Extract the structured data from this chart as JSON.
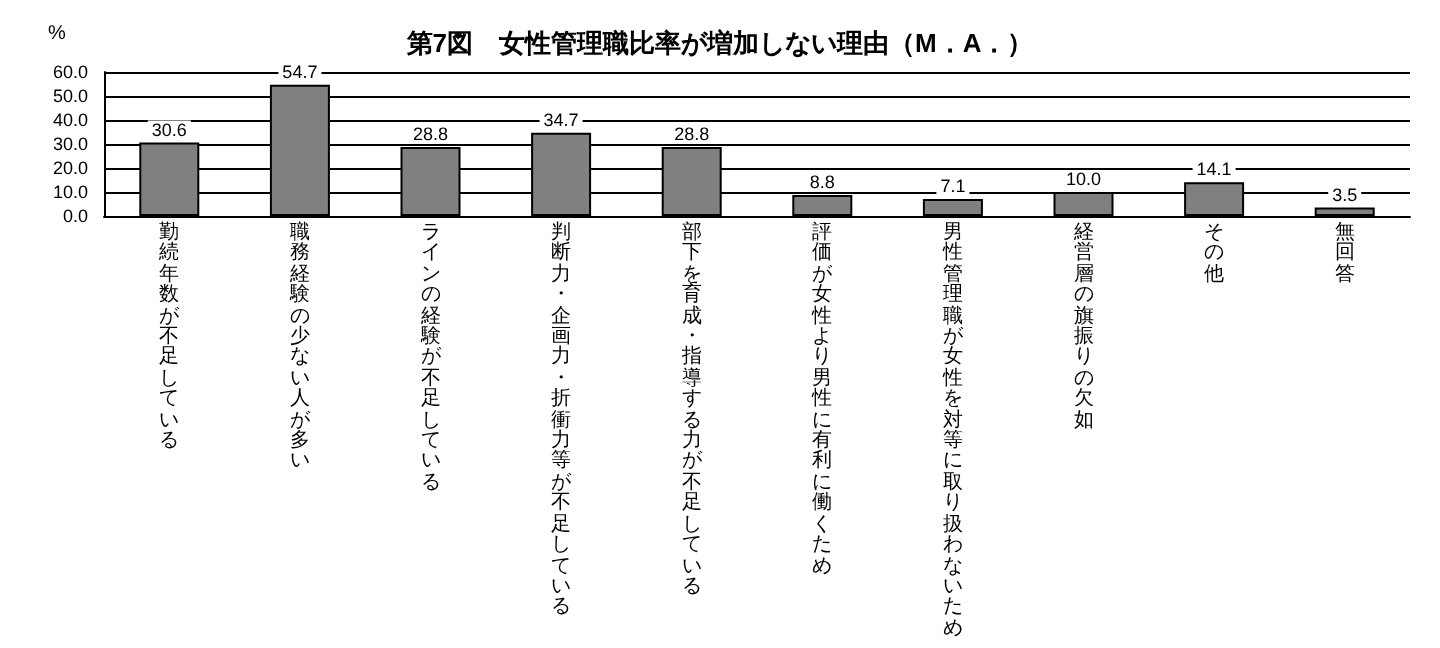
{
  "chart_data": {
    "type": "bar",
    "title": "第7図　女性管理職比率が増加しない理由（M．A．）",
    "ylabel": "%",
    "categories": [
      "勤続年数が不足している",
      "職務経験の少ない人が多い",
      "ラインの経験が不足している",
      "判断力・企画力・折衝力等が不足している",
      "部下を育成・指導する力が不足している",
      "評価が女性より男性に有利に働くため",
      "男性管理職が女性を対等に取り扱わないため",
      "経営層の旗振りの欠如",
      "その他",
      "無回答"
    ],
    "values": [
      30.6,
      54.7,
      28.8,
      34.7,
      28.8,
      8.8,
      7.1,
      10.0,
      14.1,
      3.5
    ],
    "value_labels": [
      "30.6",
      "54.7",
      "28.8",
      "34.7",
      "28.8",
      "8.8",
      "7.1",
      "10.0",
      "14.1",
      "3.5"
    ],
    "color": "#808080",
    "ylim": [
      0,
      60
    ],
    "yticks": [
      {
        "value": 0,
        "label": "0.0"
      },
      {
        "value": 10,
        "label": "10.0"
      },
      {
        "value": 20,
        "label": "20.0"
      },
      {
        "value": 30,
        "label": "30.0"
      },
      {
        "value": 40,
        "label": "40.0"
      },
      {
        "value": 50,
        "label": "50.0"
      },
      {
        "value": 60,
        "label": "60.0"
      }
    ],
    "grid": "y"
  }
}
